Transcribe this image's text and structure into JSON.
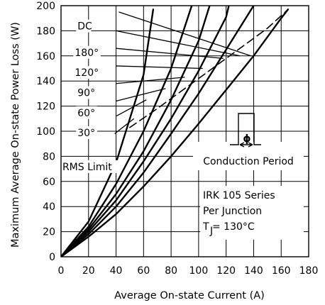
{
  "chart_data": {
    "type": "line",
    "xlabel": "Average On-state Current (A)",
    "ylabel": "Maximum Average On-state Power Loss (W)",
    "xlim": [
      0,
      180
    ],
    "ylim": [
      0,
      200
    ],
    "x_ticks": [
      0,
      20,
      40,
      60,
      80,
      100,
      120,
      140,
      160,
      180
    ],
    "y_ticks": [
      0,
      20,
      40,
      60,
      80,
      100,
      120,
      140,
      160,
      180,
      200
    ],
    "grid": true,
    "series": [
      {
        "name": "30°",
        "x": [
          0,
          20,
          40,
          60,
          67
        ],
        "y": [
          0,
          28,
          75,
          145,
          197
        ]
      },
      {
        "name": "60°",
        "x": [
          0,
          20,
          40,
          60,
          80,
          95
        ],
        "y": [
          0,
          24,
          58,
          100,
          150,
          200
        ]
      },
      {
        "name": "90°",
        "x": [
          0,
          20,
          40,
          60,
          80,
          100,
          108
        ],
        "y": [
          0,
          22,
          50,
          84,
          125,
          172,
          200
        ]
      },
      {
        "name": "120°",
        "x": [
          0,
          20,
          40,
          60,
          80,
          100,
          120,
          122
        ],
        "y": [
          0,
          20,
          45,
          76,
          110,
          148,
          191,
          200
        ]
      },
      {
        "name": "180°",
        "x": [
          0,
          20,
          40,
          60,
          80,
          100,
          120,
          140
        ],
        "y": [
          0,
          18,
          40,
          67,
          98,
          130,
          165,
          200
        ]
      },
      {
        "name": "DC",
        "x": [
          0,
          20,
          40,
          60,
          80,
          100,
          120,
          140,
          160,
          165
        ],
        "y": [
          0,
          16,
          34,
          56,
          80,
          106,
          133,
          160,
          190,
          197
        ]
      },
      {
        "name": "RMS Limit",
        "x": [
          50,
          70,
          90,
          110,
          130,
          150,
          164
        ],
        "y": [
          103,
          118,
          134,
          150,
          166,
          182,
          196
        ]
      }
    ],
    "labels": [
      {
        "text": "DC",
        "series": "DC",
        "x": 12,
        "y": 181
      },
      {
        "text": "180°",
        "series": "180°",
        "x": 10,
        "y": 160
      },
      {
        "text": "120°",
        "series": "120°",
        "x": 10,
        "y": 144
      },
      {
        "text": "90°",
        "series": "90°",
        "x": 12,
        "y": 128
      },
      {
        "text": "60°",
        "series": "60°",
        "x": 12,
        "y": 112
      },
      {
        "text": "30°",
        "series": "30°",
        "x": 12,
        "y": 96
      },
      {
        "text": "RMS Limit",
        "series": "RMS Limit",
        "x": 1,
        "y": 69
      }
    ],
    "leaders": [
      {
        "from": [
          42,
          195
        ],
        "to": [
          138,
          160
        ]
      },
      {
        "from": [
          40,
          180
        ],
        "to": [
          130,
          160
        ]
      },
      {
        "from": [
          40,
          166
        ],
        "to": [
          118,
          158
        ]
      },
      {
        "from": [
          40,
          152
        ],
        "to": [
          103,
          150
        ]
      },
      {
        "from": [
          40,
          138
        ],
        "to": [
          90,
          143
        ]
      },
      {
        "from": [
          40,
          124
        ],
        "to": [
          76,
          134
        ]
      },
      {
        "from": [
          40,
          112
        ],
        "to": [
          62,
          125
        ]
      },
      {
        "from": [
          39,
          98
        ],
        "to": [
          53,
          110
        ]
      }
    ],
    "inset_label": "Conduction Period",
    "info_lines": [
      "IRK 105  Series",
      "Per Junction",
      "T  = 130°C"
    ],
    "info_subscript": "J"
  }
}
